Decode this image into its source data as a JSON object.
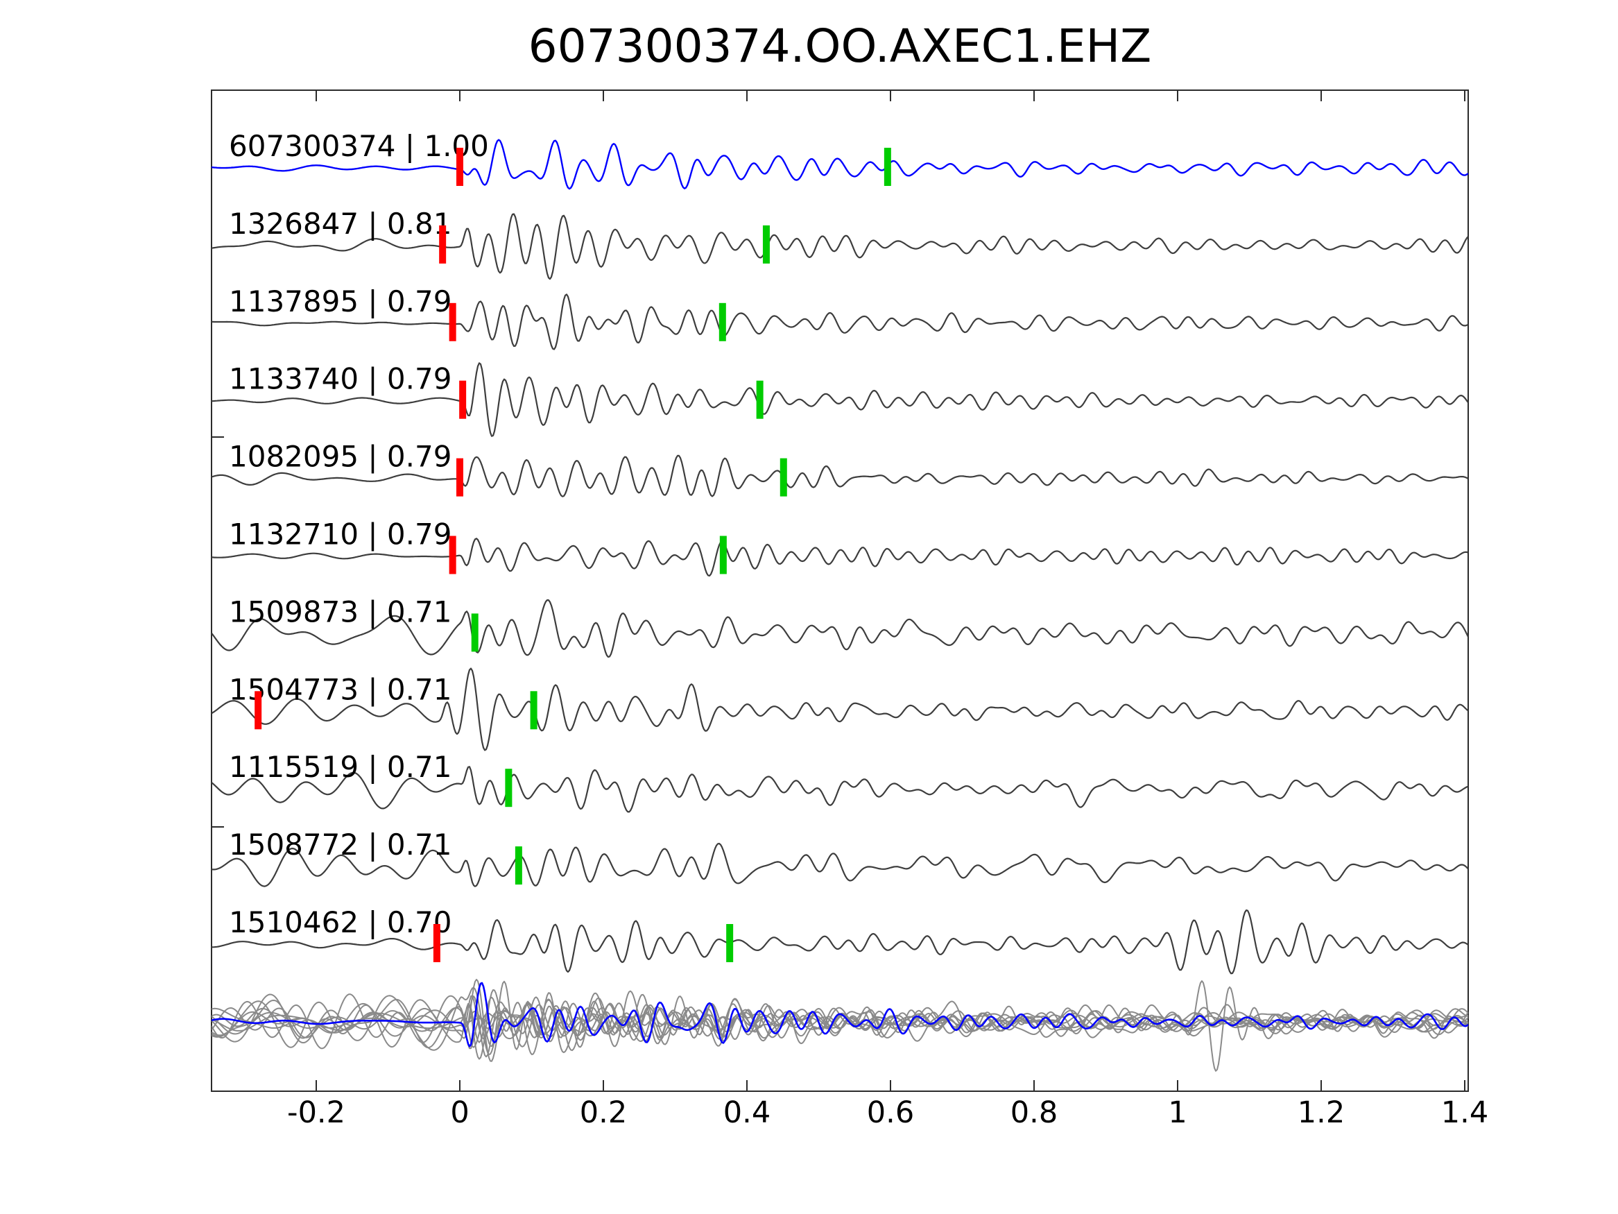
{
  "title": "607300374.OO.AXEC1.EHZ",
  "colors": {
    "reference_trace": "#0000ff",
    "match_trace": "#3d3d3d",
    "overlay_gray": "#8a8a8a",
    "overlay_highlight": "#0000ff",
    "pick_primary_red": "#ff0000",
    "pick_secondary_green": "#00cc00",
    "axis": "#2b2b2b",
    "text": "#000000",
    "background": "#ffffff"
  },
  "chart_data": {
    "type": "line",
    "subtype": "seismogram-correlation-stack",
    "title": "607300374.OO.AXEC1.EHZ",
    "xlabel": "",
    "ylabel": "",
    "grid": false,
    "legend": null,
    "x_axis": {
      "range": [
        -0.346,
        1.405
      ],
      "ticks": [
        -0.2,
        0,
        0.2,
        0.4,
        0.6,
        0.8,
        1,
        1.2,
        1.4
      ],
      "tick_labels": [
        "-0.2",
        "0",
        "0.2",
        "0.4",
        "0.6",
        "0.8",
        "1",
        "1.2",
        "1.4"
      ]
    },
    "traces": [
      {
        "id": "607300374",
        "correlation": "1.00",
        "label": "607300374 | 1.00",
        "role": "reference",
        "pick_red_t": 0.0,
        "pick_green_t": 0.596,
        "noisy_pre_onset": false
      },
      {
        "id": "1326847",
        "correlation": "0.81",
        "label": "1326847 | 0.81",
        "role": "match",
        "pick_red_t": -0.024,
        "pick_green_t": 0.427,
        "noisy_pre_onset": false
      },
      {
        "id": "1137895",
        "correlation": "0.79",
        "label": "1137895 | 0.79",
        "role": "match",
        "pick_red_t": -0.01,
        "pick_green_t": 0.366,
        "noisy_pre_onset": false
      },
      {
        "id": "1133740",
        "correlation": "0.79",
        "label": "1133740 | 0.79",
        "role": "match",
        "pick_red_t": 0.004,
        "pick_green_t": 0.418,
        "noisy_pre_onset": false
      },
      {
        "id": "1082095",
        "correlation": "0.79",
        "label": "1082095 | 0.79",
        "role": "match",
        "pick_red_t": 0.0,
        "pick_green_t": 0.451,
        "noisy_pre_onset": false
      },
      {
        "id": "1132710",
        "correlation": "0.79",
        "label": "1132710 | 0.79",
        "role": "match",
        "pick_red_t": -0.01,
        "pick_green_t": 0.367,
        "noisy_pre_onset": false
      },
      {
        "id": "1509873",
        "correlation": "0.71",
        "label": "1509873 | 0.71",
        "role": "match",
        "pick_red_t": null,
        "pick_green_t": 0.021,
        "noisy_pre_onset": true
      },
      {
        "id": "1504773",
        "correlation": "0.71",
        "label": "1504773 | 0.71",
        "role": "match",
        "pick_red_t": -0.281,
        "pick_green_t": 0.103,
        "noisy_pre_onset": true
      },
      {
        "id": "1115519",
        "correlation": "0.71",
        "label": "1115519 | 0.71",
        "role": "match",
        "pick_red_t": null,
        "pick_green_t": 0.068,
        "noisy_pre_onset": true
      },
      {
        "id": "1508772",
        "correlation": "0.71",
        "label": "1508772 | 0.71",
        "role": "match",
        "pick_red_t": null,
        "pick_green_t": 0.082,
        "noisy_pre_onset": true
      },
      {
        "id": "1510462",
        "correlation": "0.70",
        "label": "1510462 | 0.70",
        "role": "match",
        "pick_red_t": -0.032,
        "pick_green_t": 0.376,
        "noisy_pre_onset": false,
        "late_burst_t": 1.08
      }
    ],
    "overlay_row": {
      "description": "all matched waveforms superimposed in gray with reference waveform highlighted in blue",
      "gray_trace_count": 10,
      "highlight_role": "reference"
    }
  }
}
